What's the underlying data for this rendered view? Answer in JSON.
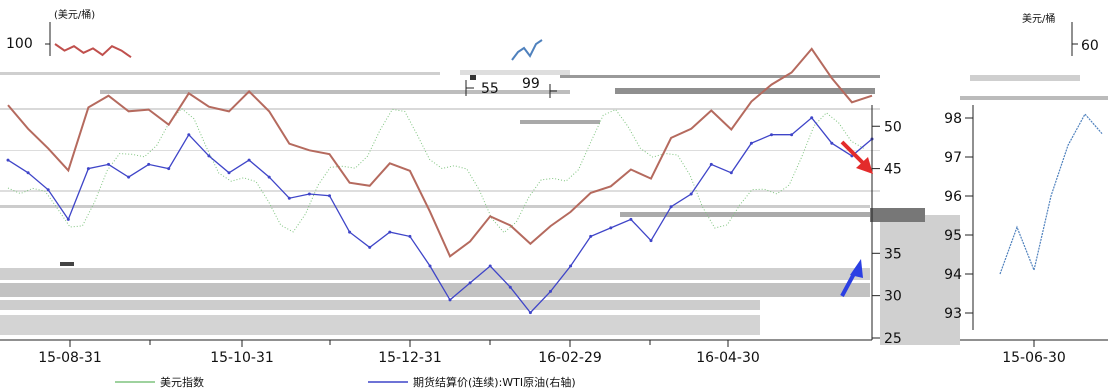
{
  "chart_data": [
    {
      "type": "line",
      "title": "",
      "y_unit_label": "(美元/桶)",
      "x_ticks": [
        "15-08-31",
        "15-10-31",
        "15-12-31",
        "16-02-29",
        "16-04-30"
      ],
      "y_left_ticks": [],
      "y_right_ticks": [
        "25",
        "30",
        "35",
        "45",
        "50"
      ],
      "y_right_range": [
        25,
        52
      ],
      "series": [
        {
          "name": "期货结算价(连续):WTI原油(右轴)",
          "color": "#3f45c8",
          "axis": "right",
          "x": [
            "15-08-01",
            "15-08-10",
            "15-08-18",
            "15-08-24",
            "15-08-31",
            "15-09-08",
            "15-09-15",
            "15-09-23",
            "15-10-01",
            "15-10-09",
            "15-10-16",
            "15-10-23",
            "15-10-31",
            "15-11-09",
            "15-11-17",
            "15-11-24",
            "15-12-01",
            "15-12-09",
            "15-12-16",
            "15-12-24",
            "15-12-31",
            "16-01-08",
            "16-01-15",
            "16-01-22",
            "16-01-29",
            "16-02-05",
            "16-02-12",
            "16-02-19",
            "16-02-29",
            "16-03-08",
            "16-03-16",
            "16-03-24",
            "16-04-01",
            "16-04-11",
            "16-04-20",
            "16-04-30",
            "16-05-09",
            "16-05-17",
            "16-05-25",
            "16-06-02",
            "16-06-09",
            "16-06-16",
            "16-06-23",
            "16-06-30"
          ],
          "values": [
            46.0,
            44.5,
            42.5,
            39.0,
            45.0,
            45.5,
            44.0,
            45.5,
            45.0,
            49.0,
            46.5,
            44.5,
            46.0,
            44.0,
            41.5,
            42.0,
            41.8,
            37.5,
            35.7,
            37.5,
            37.0,
            33.5,
            29.5,
            31.5,
            33.5,
            31.0,
            28.0,
            30.5,
            33.5,
            37.0,
            38.0,
            39.0,
            36.5,
            40.5,
            42.0,
            45.5,
            44.5,
            48.0,
            49.0,
            49.0,
            51.0,
            48.0,
            46.5,
            48.5
          ]
        },
        {
          "name": "美元指数",
          "color": "#7fc47f",
          "axis": "secondary",
          "x": [],
          "values": []
        }
      ],
      "legend": [
        "美元指数",
        "期货结算价(连续):WTI原油(右轴)"
      ],
      "legend_position": "bottom",
      "annotations": [
        {
          "kind": "arrow",
          "color": "#e32b2b",
          "direction": "down-right"
        },
        {
          "kind": "arrow",
          "color": "#2b3fe3",
          "direction": "up-right"
        }
      ]
    },
    {
      "type": "line",
      "title": "",
      "y_unit_label": "(美元/桶)",
      "y_ticks": [
        "100"
      ],
      "series": [
        {
          "name": "",
          "color": "#c0504d",
          "values": [
            100,
            97,
            99,
            96,
            98,
            95,
            99,
            97,
            94
          ]
        }
      ]
    },
    {
      "type": "line",
      "title": "",
      "y_unit_label": "美元/桶",
      "x_ticks": [
        "15-06-30"
      ],
      "y_ticks": [
        "60",
        "93",
        "94",
        "95",
        "96",
        "97",
        "98"
      ],
      "y_right_ticks": [
        "60"
      ],
      "series": [
        {
          "name": "",
          "color": "#4f81bd",
          "values": [
            94.0,
            95.2,
            94.1,
            96.0,
            97.3,
            98.1,
            97.6
          ]
        }
      ]
    },
    {
      "type": "line",
      "title": "",
      "y_ticks": [
        "55",
        "99"
      ],
      "series": [
        {
          "name": "",
          "color": "#4f81bd",
          "values": [
            55,
            57,
            58,
            56,
            59,
            60
          ]
        }
      ]
    }
  ],
  "page": {
    "background": "#ffffff",
    "artifact_color": "#c8c8c8",
    "dark_artifact_color": "#555555"
  }
}
